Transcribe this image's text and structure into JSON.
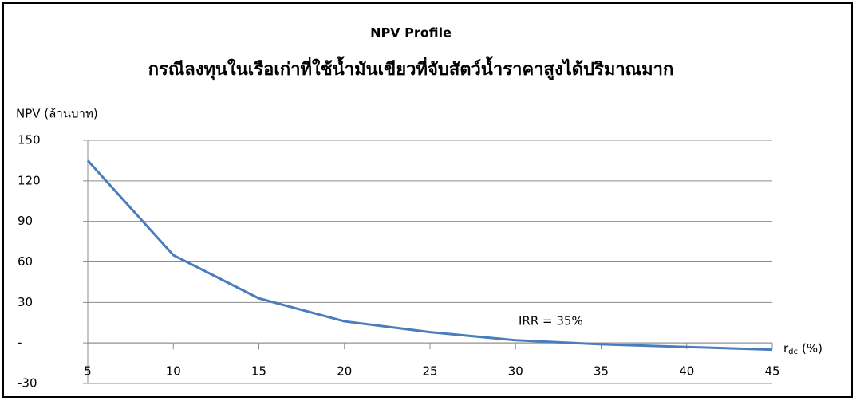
{
  "chart_data": {
    "type": "line",
    "title": "NPV Profile",
    "subtitle": "กรณีลงทุนในเรือเก่าที่ใช้น้ำมันเขียวที่จับสัตว์น้ำราคาสูงได้ปริมาณมาก",
    "y_label": "NPV (ล้านบาท)",
    "x_label": "r",
    "x_label_sub": "dc",
    "x_label_unit": "(%)",
    "annotation": "IRR = 35%",
    "x": [
      5,
      10,
      15,
      20,
      25,
      30,
      35,
      40,
      45
    ],
    "series": [
      {
        "name": "NPV",
        "color": "#4a7ebb",
        "values": [
          135,
          65,
          33,
          16,
          8,
          2,
          -1,
          -3,
          -5
        ]
      }
    ],
    "xlim": [
      5,
      45
    ],
    "xticks": [
      5,
      10,
      15,
      20,
      25,
      30,
      35,
      40,
      45
    ],
    "ylim": [
      -30,
      150
    ],
    "yticks": [
      {
        "value": -30,
        "label": "-30"
      },
      {
        "value": 0,
        "label": "-"
      },
      30,
      60,
      90,
      120,
      150
    ],
    "grid": true
  }
}
